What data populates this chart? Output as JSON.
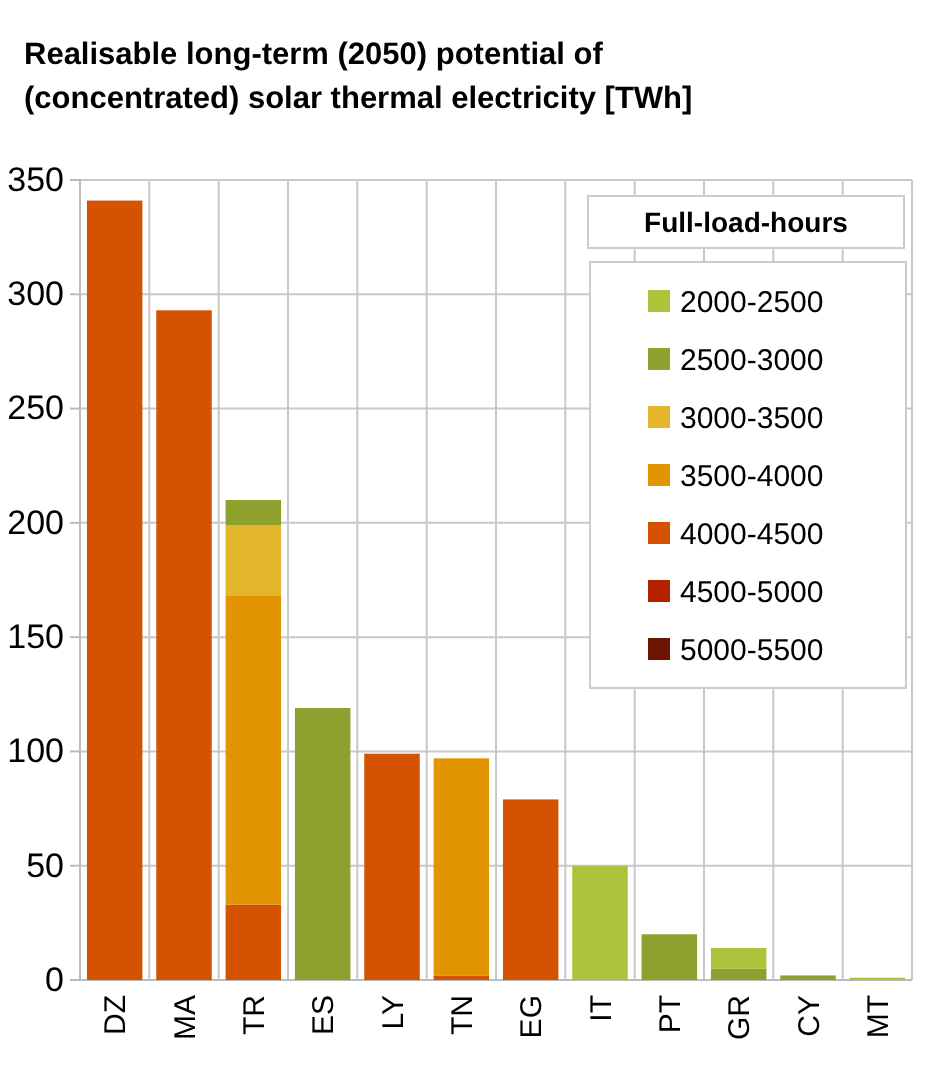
{
  "chart_data": {
    "type": "bar",
    "stacked": true,
    "title": "Realisable long-term (2050) potential of (concentrated) solar thermal electricity [TWh]",
    "legend_title": "Full-load-hours",
    "categories": [
      "DZ",
      "MA",
      "TR",
      "ES",
      "LY",
      "TN",
      "EG",
      "IT",
      "PT",
      "GR",
      "CY",
      "MT"
    ],
    "series": [
      {
        "name": "5000-5500",
        "color": "#6b1500",
        "values": [
          null,
          null,
          null,
          null,
          null,
          null,
          null,
          null,
          null,
          null,
          null,
          null
        ]
      },
      {
        "name": "4500-5000",
        "color": "#b52200",
        "values": [
          null,
          null,
          null,
          null,
          null,
          null,
          null,
          null,
          null,
          null,
          null,
          null
        ]
      },
      {
        "name": "4000-4500",
        "color": "#d45200",
        "values": [
          341,
          293,
          33,
          null,
          99,
          2,
          79,
          null,
          null,
          null,
          null,
          null
        ]
      },
      {
        "name": "3500-4000",
        "color": "#e29400",
        "values": [
          null,
          null,
          135,
          null,
          null,
          95,
          null,
          null,
          null,
          null,
          null,
          null
        ]
      },
      {
        "name": "3000-3500",
        "color": "#e3b52b",
        "values": [
          null,
          null,
          31,
          null,
          null,
          null,
          null,
          null,
          null,
          null,
          null,
          null
        ]
      },
      {
        "name": "2500-3000",
        "color": "#8ea12f",
        "values": [
          null,
          null,
          11,
          119,
          null,
          null,
          null,
          null,
          20,
          5,
          2,
          null
        ]
      },
      {
        "name": "2000-2500",
        "color": "#afc23b",
        "values": [
          null,
          null,
          null,
          null,
          null,
          null,
          null,
          50,
          null,
          9,
          null,
          1
        ]
      }
    ],
    "ylim": [
      0,
      350
    ],
    "yticks": [
      0,
      50,
      100,
      150,
      200,
      250,
      300,
      350
    ],
    "grid": true,
    "legend": "top right"
  }
}
